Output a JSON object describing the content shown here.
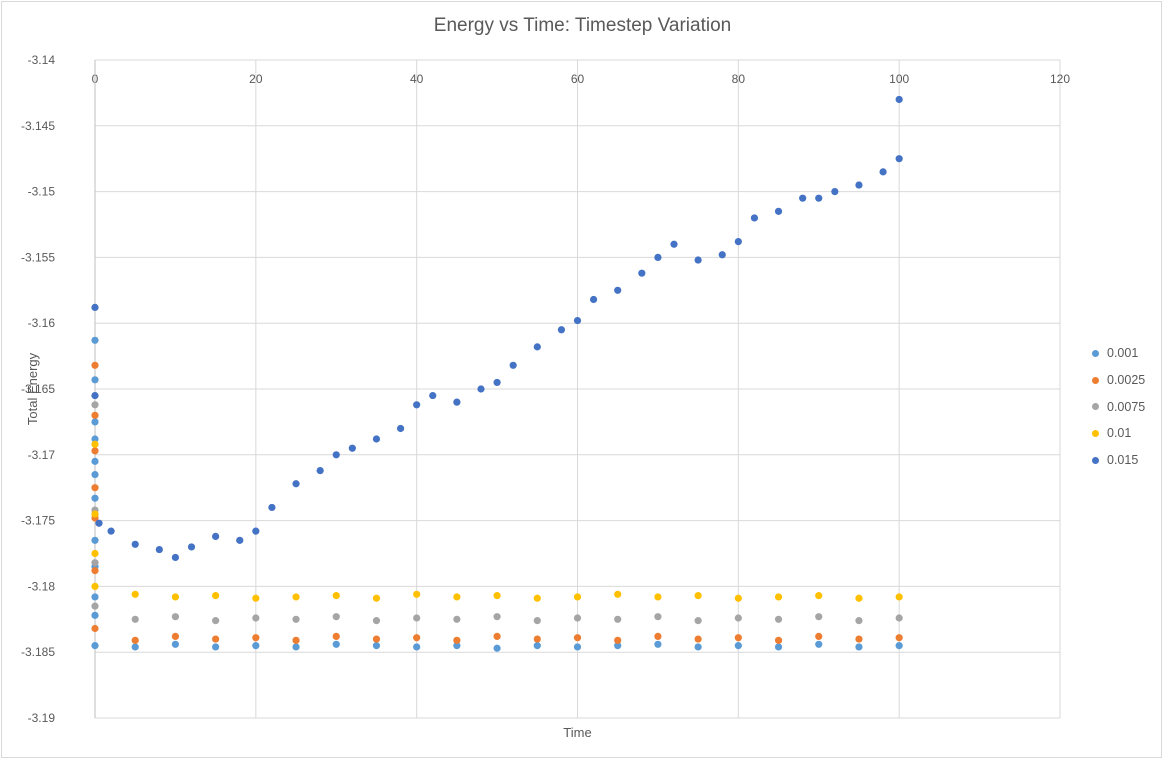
{
  "chart_data": {
    "type": "scatter",
    "title": "Energy vs Time: Timestep Variation",
    "xlabel": "Time",
    "ylabel": "Total Energy",
    "xlim": [
      0,
      120
    ],
    "ylim": [
      -3.19,
      -3.14
    ],
    "xticks": [
      "0",
      "20",
      "40",
      "60",
      "80",
      "100",
      "120"
    ],
    "yticks": [
      "-3.14",
      "-3.145",
      "-3.15",
      "-3.155",
      "-3.16",
      "-3.165",
      "-3.17",
      "-3.175",
      "-3.18",
      "-3.185",
      "-3.19"
    ],
    "grid": true,
    "legend_position": "right",
    "series": [
      {
        "name": "0.001",
        "color": "#5b9bd5",
        "x": [
          0,
          0,
          0,
          0,
          0,
          0,
          0,
          0,
          0,
          0,
          0,
          0,
          0,
          5,
          10,
          15,
          20,
          25,
          30,
          35,
          40,
          45,
          50,
          55,
          60,
          65,
          70,
          75,
          80,
          85,
          90,
          95,
          100
        ],
        "y": [
          -3.1613,
          -3.1643,
          -3.1675,
          -3.1688,
          -3.1705,
          -3.1715,
          -3.1733,
          -3.1745,
          -3.1765,
          -3.1785,
          -3.1808,
          -3.1822,
          -3.1845,
          -3.1846,
          -3.1844,
          -3.1846,
          -3.1845,
          -3.1846,
          -3.1844,
          -3.1845,
          -3.1846,
          -3.1845,
          -3.1847,
          -3.1845,
          -3.1846,
          -3.1845,
          -3.1844,
          -3.1846,
          -3.1845,
          -3.1846,
          -3.1844,
          -3.1846,
          -3.1845
        ]
      },
      {
        "name": "0.0025",
        "color": "#ed7d31",
        "x": [
          0,
          0,
          0,
          0,
          0,
          0,
          0,
          5,
          10,
          15,
          20,
          25,
          30,
          35,
          40,
          45,
          50,
          55,
          60,
          65,
          70,
          75,
          80,
          85,
          90,
          95,
          100
        ],
        "y": [
          -3.1632,
          -3.167,
          -3.1697,
          -3.1725,
          -3.1748,
          -3.1788,
          -3.1832,
          -3.1841,
          -3.1838,
          -3.184,
          -3.1839,
          -3.1841,
          -3.1838,
          -3.184,
          -3.1839,
          -3.1841,
          -3.1838,
          -3.184,
          -3.1839,
          -3.1841,
          -3.1838,
          -3.184,
          -3.1839,
          -3.1841,
          -3.1838,
          -3.184,
          -3.1839
        ]
      },
      {
        "name": "0.0075",
        "color": "#a5a5a5",
        "x": [
          0,
          0,
          0,
          0,
          5,
          10,
          15,
          20,
          25,
          30,
          35,
          40,
          45,
          50,
          55,
          60,
          65,
          70,
          75,
          80,
          85,
          90,
          95,
          100
        ],
        "y": [
          -3.1662,
          -3.1742,
          -3.1782,
          -3.1815,
          -3.1825,
          -3.1823,
          -3.1826,
          -3.1824,
          -3.1825,
          -3.1823,
          -3.1826,
          -3.1824,
          -3.1825,
          -3.1823,
          -3.1826,
          -3.1824,
          -3.1825,
          -3.1823,
          -3.1826,
          -3.1824,
          -3.1825,
          -3.1823,
          -3.1826,
          -3.1824
        ]
      },
      {
        "name": "0.01",
        "color": "#ffc000",
        "x": [
          0,
          0,
          0,
          0,
          5,
          10,
          15,
          20,
          25,
          30,
          35,
          40,
          45,
          50,
          55,
          60,
          65,
          70,
          75,
          80,
          85,
          90,
          95,
          100
        ],
        "y": [
          -3.1692,
          -3.1745,
          -3.1775,
          -3.18,
          -3.1806,
          -3.1808,
          -3.1807,
          -3.1809,
          -3.1808,
          -3.1807,
          -3.1809,
          -3.1806,
          -3.1808,
          -3.1807,
          -3.1809,
          -3.1808,
          -3.1806,
          -3.1808,
          -3.1807,
          -3.1809,
          -3.1808,
          -3.1807,
          -3.1809,
          -3.1808
        ]
      },
      {
        "name": "0.015",
        "color": "#4472c4",
        "x": [
          0,
          0,
          0.5,
          2,
          5,
          8,
          10,
          12,
          15,
          18,
          20,
          22,
          25,
          28,
          30,
          32,
          35,
          38,
          40,
          42,
          45,
          48,
          50,
          52,
          55,
          58,
          60,
          62,
          65,
          68,
          70,
          72,
          75,
          78,
          80,
          82,
          85,
          88,
          90,
          92,
          95,
          98,
          100,
          100
        ],
        "y": [
          -3.1588,
          -3.1655,
          -3.1752,
          -3.1758,
          -3.1768,
          -3.1772,
          -3.1778,
          -3.177,
          -3.1762,
          -3.1765,
          -3.1758,
          -3.174,
          -3.1722,
          -3.1712,
          -3.17,
          -3.1695,
          -3.1688,
          -3.168,
          -3.1662,
          -3.1655,
          -3.166,
          -3.165,
          -3.1645,
          -3.1632,
          -3.1618,
          -3.1605,
          -3.1598,
          -3.1582,
          -3.1575,
          -3.1562,
          -3.155,
          -3.154,
          -3.1552,
          -3.1548,
          -3.1538,
          -3.152,
          -3.1515,
          -3.1505,
          -3.1505,
          -3.15,
          -3.1495,
          -3.1485,
          -3.1475,
          -3.143
        ]
      }
    ]
  }
}
